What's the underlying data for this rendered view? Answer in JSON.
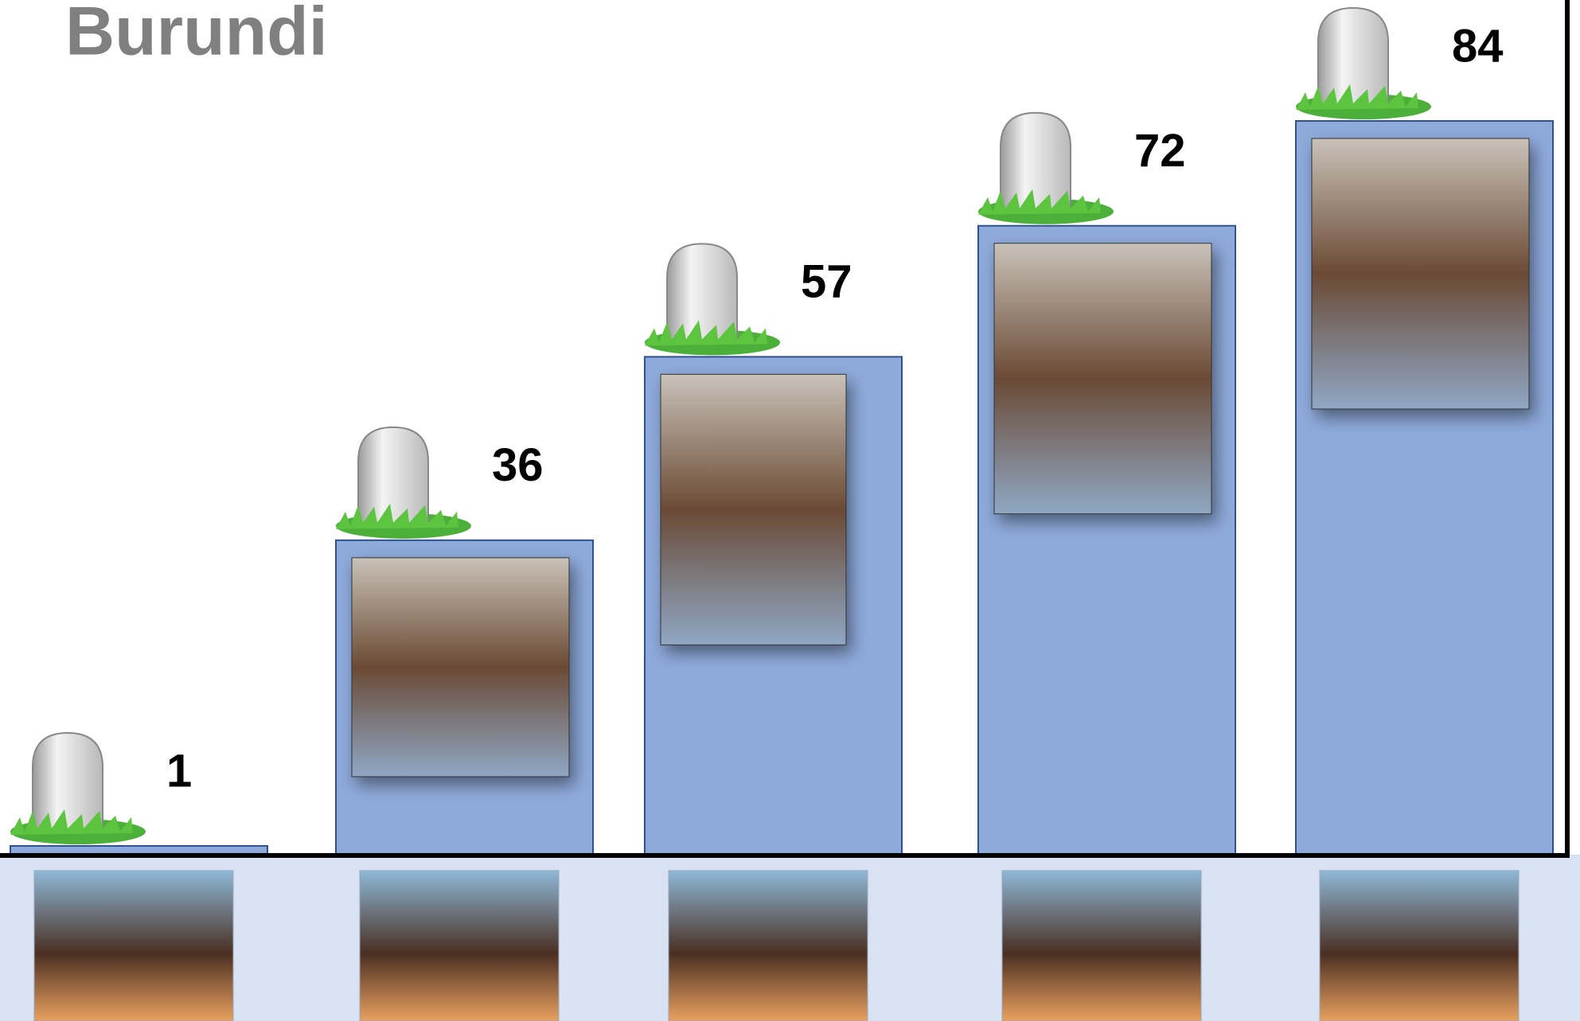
{
  "chart_data": {
    "type": "bar",
    "title": "Burundi",
    "values": [
      1,
      36,
      57,
      72,
      84
    ],
    "color": "#8eaadb"
  }
}
